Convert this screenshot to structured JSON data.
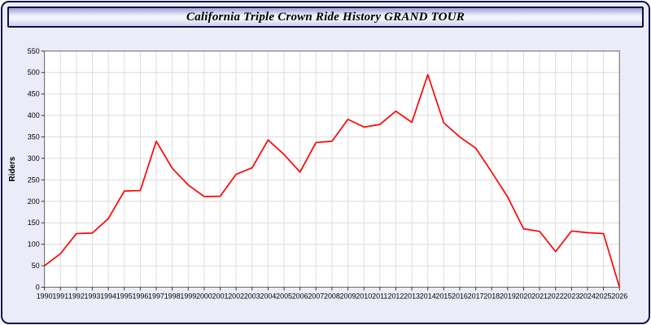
{
  "window": {
    "title": "California Triple Crown Ride History GRAND TOUR"
  },
  "chart_data": {
    "type": "line",
    "title": "California Triple Crown Ride History GRAND TOUR",
    "xlabel": "",
    "ylabel": "Riders",
    "ylim": [
      0,
      550
    ],
    "y_tick_step": 50,
    "grid": true,
    "legend": "none",
    "line_color": "#ff0000",
    "grid_color": "#dcdcdc",
    "axis_color": "#666666",
    "tick_color": "#333333",
    "plot_bg": "#ffffff",
    "page_bg": "#ebecf7",
    "x": [
      1990,
      1991,
      1992,
      1993,
      1994,
      1995,
      1996,
      1997,
      1998,
      1999,
      2000,
      2001,
      2002,
      2003,
      2004,
      2005,
      2006,
      2007,
      2008,
      2009,
      2010,
      2011,
      2012,
      2013,
      2014,
      2015,
      2016,
      2017,
      2018,
      2019,
      2020,
      2021,
      2022,
      2023,
      2024,
      2025,
      2026
    ],
    "series_name": "Riders",
    "values": [
      50,
      78,
      125,
      126,
      160,
      224,
      225,
      340,
      277,
      238,
      211,
      212,
      263,
      278,
      343,
      309,
      268,
      337,
      340,
      391,
      373,
      379,
      410,
      384,
      495,
      383,
      350,
      324,
      268,
      210,
      136,
      130,
      83,
      131,
      127,
      125,
      0
    ]
  }
}
